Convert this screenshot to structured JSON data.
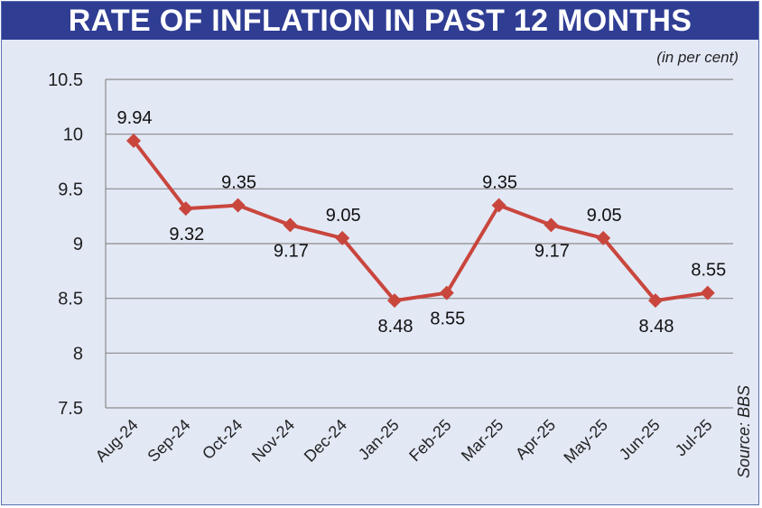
{
  "chart_data": {
    "type": "line",
    "title": "RATE OF INFLATION IN PAST 12 MONTHS",
    "subtitle": "(in per cent)",
    "source": "Source: BBS",
    "categories": [
      "Aug-24",
      "Sep-24",
      "Oct-24",
      "Nov-24",
      "Dec-24",
      "Jan-25",
      "Feb-25",
      "Mar-25",
      "Apr-25",
      "May-25",
      "Jun-25",
      "Jul-25"
    ],
    "series": [
      {
        "name": "Inflation",
        "values": [
          9.94,
          9.32,
          9.35,
          9.17,
          9.05,
          8.48,
          8.55,
          9.35,
          9.17,
          9.05,
          8.48,
          8.55
        ],
        "color": "#c9463d"
      }
    ],
    "data_labels": [
      "9.94",
      "9.32",
      "9.35",
      "9.17",
      "9.05",
      "8.48",
      "8.55",
      "9.35",
      "9.17",
      "9.05",
      "8.48",
      "8.55"
    ],
    "label_positions": [
      "above",
      "below",
      "above",
      "below",
      "above",
      "below",
      "below",
      "above",
      "below",
      "above",
      "below",
      "above"
    ],
    "yticks": [
      "7.5",
      "8",
      "8.5",
      "9",
      "9.5",
      "10",
      "10.5"
    ],
    "ylim": [
      7.5,
      10.5
    ],
    "grid": true,
    "gridline_color": "#8a8a8a"
  }
}
